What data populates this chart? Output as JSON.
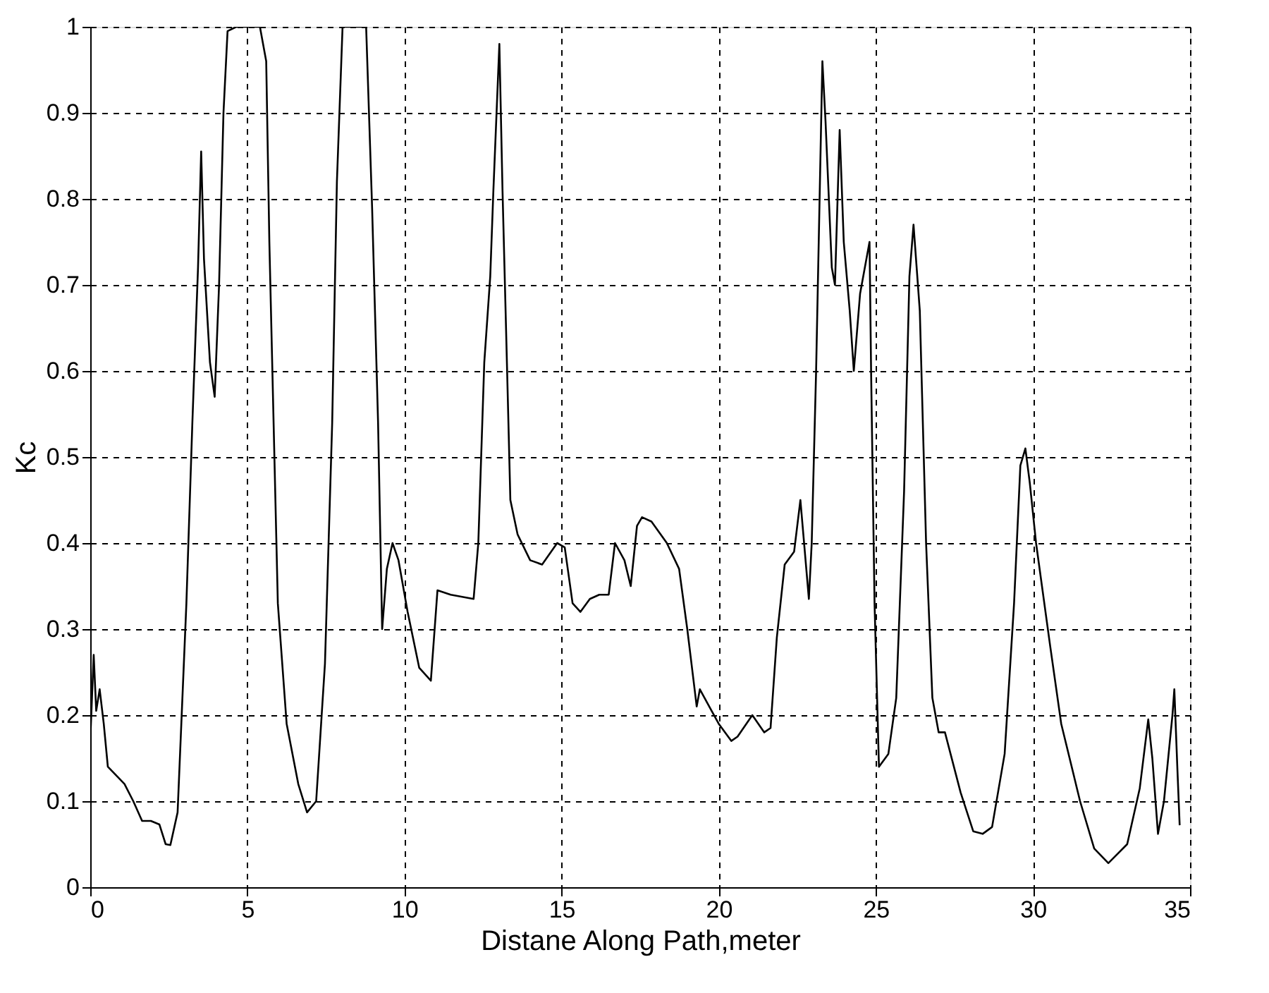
{
  "chart_data": {
    "type": "line",
    "xlabel": "Distane Along Path,meter",
    "ylabel": "Kc",
    "xlim": [
      0,
      35
    ],
    "ylim": [
      0,
      1
    ],
    "xticks": [
      0,
      5,
      10,
      15,
      20,
      25,
      30,
      35
    ],
    "yticks": [
      0,
      0.1,
      0.2,
      0.3,
      0.4,
      0.5,
      0.6,
      0.7,
      0.8,
      0.9,
      1
    ],
    "grid": true,
    "line_style": "solid",
    "marker": "none",
    "series": [
      {
        "color": "#000000",
        "x": [
          0,
          0.11,
          0.19,
          0.3,
          0.43,
          0.56,
          1.09,
          1.37,
          1.65,
          1.93,
          2.2,
          2.4,
          2.55,
          2.78,
          3.06,
          3.25,
          3.43,
          3.53,
          3.62,
          3.81,
          3.96,
          4.1,
          4.24,
          4.37,
          4.65,
          5.4,
          5.6,
          5.7,
          5.97,
          6.25,
          6.62,
          6.9,
          7.19,
          7.47,
          7.7,
          7.85,
          8.03,
          8.78,
          8.97,
          9.16,
          9.29,
          9.44,
          9.62,
          9.81,
          10.1,
          10.47,
          10.84,
          11.05,
          11.47,
          12.2,
          12.35,
          12.54,
          12.73,
          12.83,
          13.02,
          13.12,
          13.26,
          13.37,
          13.6,
          14.0,
          14.38,
          14.86,
          15.1,
          15.35,
          15.6,
          15.9,
          16.2,
          16.5,
          16.7,
          17.0,
          17.2,
          17.4,
          17.56,
          17.86,
          18.35,
          18.74,
          19.0,
          19.2,
          19.3,
          19.4,
          19.7,
          20.0,
          20.4,
          20.6,
          21.07,
          21.45,
          21.65,
          21.85,
          22.1,
          22.4,
          22.6,
          22.87,
          22.96,
          23.1,
          23.3,
          23.4,
          23.6,
          23.7,
          23.85,
          23.98,
          24.17,
          24.3,
          24.5,
          24.8,
          24.85,
          24.96,
          25.1,
          25.4,
          25.65,
          25.9,
          26.07,
          26.2,
          26.4,
          26.6,
          26.8,
          27.0,
          27.2,
          27.7,
          28.1,
          28.4,
          28.7,
          29.1,
          29.4,
          29.6,
          29.76,
          29.9,
          30.1,
          30.55,
          30.9,
          31.5,
          31.95,
          32.4,
          33.0,
          33.4,
          33.67,
          33.8,
          33.98,
          34.17,
          34.44,
          34.5,
          34.6,
          34.67
        ],
        "values": [
          0.17,
          0.27,
          0.205,
          0.23,
          0.19,
          0.14,
          0.12,
          0.1,
          0.077,
          0.077,
          0.073,
          0.05,
          0.049,
          0.087,
          0.33,
          0.54,
          0.72,
          0.855,
          0.73,
          0.61,
          0.57,
          0.7,
          0.9,
          0.995,
          1.0,
          1.0,
          0.96,
          0.75,
          0.33,
          0.19,
          0.12,
          0.087,
          0.1,
          0.26,
          0.54,
          0.82,
          1.0,
          1.0,
          0.79,
          0.54,
          0.3,
          0.37,
          0.4,
          0.38,
          0.32,
          0.255,
          0.24,
          0.345,
          0.34,
          0.335,
          0.4,
          0.61,
          0.71,
          0.81,
          0.98,
          0.81,
          0.61,
          0.45,
          0.41,
          0.38,
          0.375,
          0.4,
          0.395,
          0.33,
          0.32,
          0.335,
          0.34,
          0.34,
          0.4,
          0.38,
          0.35,
          0.42,
          0.43,
          0.425,
          0.4,
          0.37,
          0.3,
          0.24,
          0.21,
          0.23,
          0.21,
          0.19,
          0.17,
          0.175,
          0.2,
          0.18,
          0.185,
          0.29,
          0.375,
          0.39,
          0.45,
          0.335,
          0.4,
          0.6,
          0.96,
          0.89,
          0.72,
          0.7,
          0.88,
          0.75,
          0.67,
          0.6,
          0.69,
          0.75,
          0.6,
          0.33,
          0.14,
          0.155,
          0.22,
          0.46,
          0.71,
          0.77,
          0.67,
          0.4,
          0.22,
          0.18,
          0.18,
          0.11,
          0.065,
          0.062,
          0.07,
          0.155,
          0.33,
          0.49,
          0.51,
          0.47,
          0.4,
          0.28,
          0.19,
          0.1,
          0.045,
          0.028,
          0.05,
          0.115,
          0.195,
          0.15,
          0.062,
          0.1,
          0.2,
          0.23,
          0.135,
          0.072
        ]
      }
    ]
  }
}
